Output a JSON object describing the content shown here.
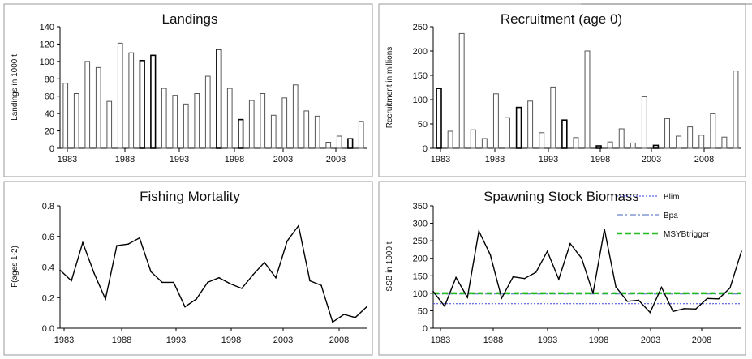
{
  "chart_data": [
    {
      "id": "landings",
      "type": "bar",
      "title": "Landings",
      "ylabel": "Landings in 1000 t",
      "xlabel": "",
      "ylim": [
        0,
        140
      ],
      "yticks": [
        0,
        20,
        40,
        60,
        80,
        100,
        120,
        140
      ],
      "xlim": [
        1983,
        2010
      ],
      "xticks": [
        1983,
        1988,
        1993,
        1998,
        2003,
        2008
      ],
      "grid": false,
      "x": [
        1983,
        1984,
        1985,
        1986,
        1987,
        1988,
        1989,
        1990,
        1991,
        1992,
        1993,
        1994,
        1995,
        1996,
        1997,
        1998,
        1999,
        2000,
        2001,
        2002,
        2003,
        2004,
        2005,
        2006,
        2007,
        2008,
        2009,
        2010
      ],
      "values": [
        75,
        63,
        100,
        93,
        54,
        121,
        110,
        101,
        107,
        69,
        61,
        51,
        63,
        83,
        114,
        69,
        33,
        55,
        63,
        38,
        58,
        73,
        43,
        37,
        7,
        14,
        11,
        31
      ],
      "dark_outline_years": [
        1990,
        1991,
        1997,
        1999,
        2009
      ]
    },
    {
      "id": "recruitment",
      "type": "bar",
      "title": "Recruitment (age 0)",
      "ylabel": "Recruitment in millions",
      "xlabel": "",
      "ylim": [
        0,
        250
      ],
      "yticks": [
        0,
        50,
        100,
        150,
        200,
        250
      ],
      "xlim": [
        1983,
        2009
      ],
      "xticks": [
        1983,
        1988,
        1993,
        1998,
        2003,
        2008
      ],
      "grid": false,
      "x": [
        1983,
        1984,
        1985,
        1986,
        1987,
        1988,
        1989,
        1990,
        1991,
        1992,
        1993,
        1994,
        1995,
        1996,
        1997,
        1998,
        1999,
        2000,
        2001,
        2002,
        2003,
        2004,
        2005,
        2006,
        2007,
        2008,
        2009
      ],
      "values": [
        123,
        35,
        236,
        38,
        20,
        112,
        63,
        84,
        97,
        32,
        126,
        58,
        22,
        200,
        5,
        13,
        40,
        11,
        106,
        6,
        61,
        25,
        44,
        27,
        71,
        23,
        159
      ],
      "dark_outline_years": [
        1983,
        1990,
        1994,
        1997,
        2002
      ]
    },
    {
      "id": "fishing-mortality",
      "type": "line",
      "title": "Fishing Mortality",
      "ylabel": "F(ages 1-2)",
      "xlabel": "",
      "ylim": [
        0,
        0.8
      ],
      "yticks": [
        0.0,
        0.2,
        0.4,
        0.6,
        0.8
      ],
      "xlim": [
        1983,
        2010
      ],
      "xticks": [
        1983,
        1988,
        1993,
        1998,
        2003,
        2008
      ],
      "grid": false,
      "series": [
        {
          "name": "",
          "color": "#000000",
          "x": [
            1983,
            1984,
            1985,
            1986,
            1987,
            1988,
            1989,
            1990,
            1991,
            1992,
            1993,
            1994,
            1995,
            1996,
            1997,
            1998,
            1999,
            2000,
            2001,
            2002,
            2003,
            2004,
            2005,
            2006,
            2007,
            2008,
            2009,
            2010
          ],
          "values": [
            0.38,
            0.31,
            0.56,
            0.36,
            0.19,
            0.54,
            0.55,
            0.59,
            0.37,
            0.3,
            0.3,
            0.14,
            0.19,
            0.3,
            0.33,
            0.29,
            0.26,
            0.35,
            0.43,
            0.33,
            0.57,
            0.67,
            0.31,
            0.28,
            0.04,
            0.09,
            0.07,
            0.14
          ]
        }
      ]
    },
    {
      "id": "ssb",
      "type": "line",
      "title": "Spawning Stock Biomass",
      "ylabel": "SSB in 1000 t",
      "xlabel": "",
      "ylim": [
        0,
        350
      ],
      "yticks": [
        0,
        50,
        100,
        150,
        200,
        250,
        300,
        350
      ],
      "xlim": [
        1983,
        2010
      ],
      "xticks": [
        1983,
        1988,
        1993,
        1998,
        2003,
        2008
      ],
      "grid": false,
      "legend": "top-right",
      "series": [
        {
          "name": "",
          "color": "#000000",
          "x": [
            1983,
            1984,
            1985,
            1986,
            1987,
            1988,
            1989,
            1990,
            1991,
            1992,
            1993,
            1994,
            1995,
            1996,
            1997,
            1998,
            1999,
            2000,
            2001,
            2002,
            2003,
            2004,
            2005,
            2006,
            2007,
            2008,
            2009,
            2010
          ],
          "values": [
            105,
            63,
            145,
            88,
            278,
            210,
            86,
            147,
            142,
            160,
            220,
            140,
            242,
            200,
            100,
            283,
            118,
            77,
            80,
            45,
            117,
            48,
            56,
            55,
            85,
            84,
            115,
            220
          ]
        }
      ],
      "reference_lines": [
        {
          "name": "Blim",
          "value": 70,
          "color": "#3344dd",
          "style": "dotted"
        },
        {
          "name": "Bpa",
          "value": 98,
          "color": "#4466bb",
          "style": "dashdot"
        },
        {
          "name": "MSYBtrigger",
          "value": 100,
          "color": "#22bb22",
          "style": "dashed"
        }
      ]
    }
  ]
}
